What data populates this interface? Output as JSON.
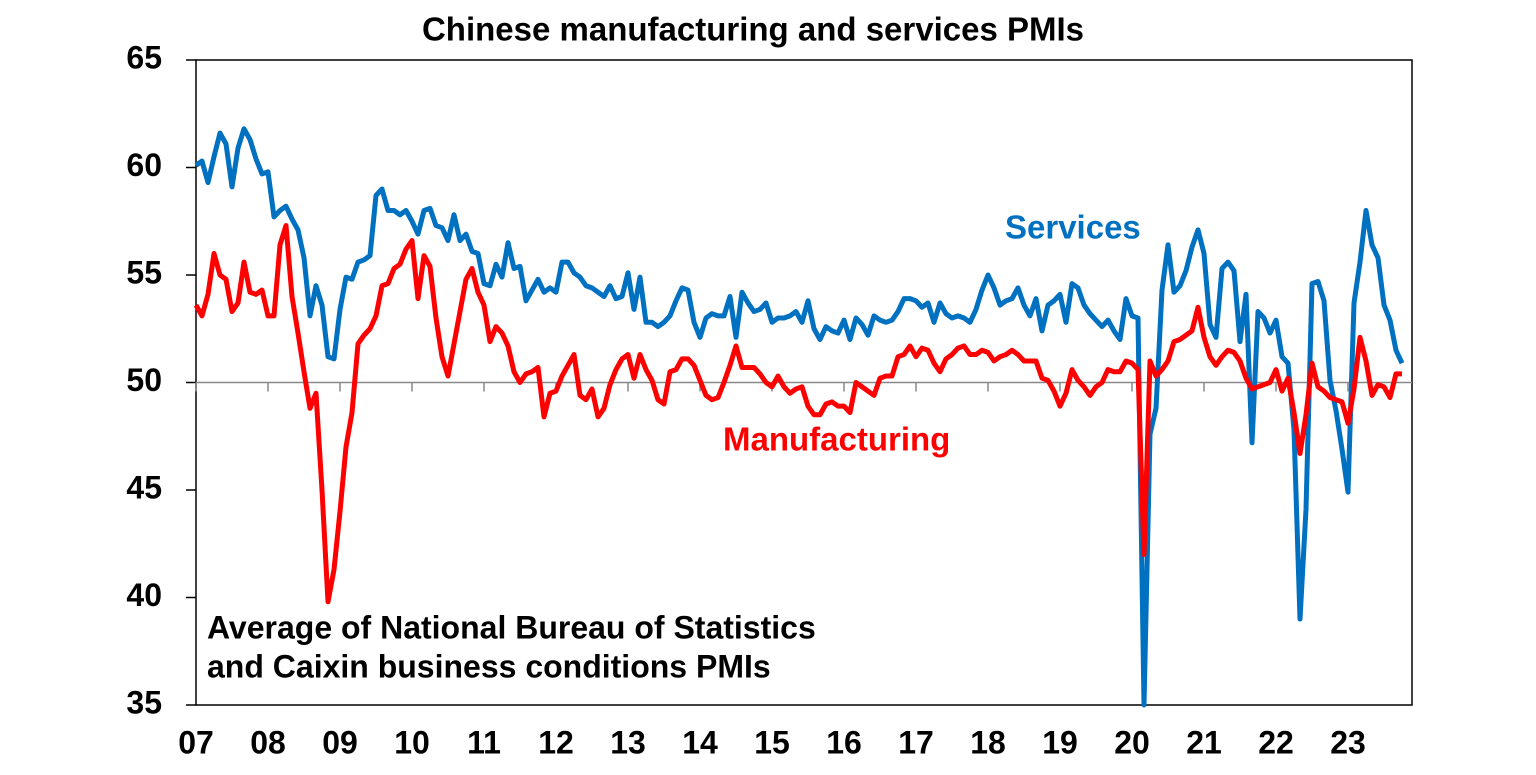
{
  "chart_data": {
    "type": "line",
    "title": "Chinese manufacturing and services PMIs",
    "note": [
      "Average of National Bureau of Statistics",
      "and Caixin business conditions PMIs"
    ],
    "categories": [
      "07",
      null,
      null,
      null,
      null,
      null,
      null,
      null,
      null,
      null,
      null,
      null,
      "08",
      null,
      null,
      null,
      null,
      null,
      null,
      null,
      null,
      null,
      null,
      null,
      "09",
      null,
      null,
      null,
      null,
      null,
      null,
      null,
      null,
      null,
      null,
      null,
      "10",
      null,
      null,
      null,
      null,
      null,
      null,
      null,
      null,
      null,
      null,
      null,
      "11",
      null,
      null,
      null,
      null,
      null,
      null,
      null,
      null,
      null,
      null,
      null,
      "12",
      null,
      null,
      null,
      null,
      null,
      null,
      null,
      null,
      null,
      null,
      null,
      "13",
      null,
      null,
      null,
      null,
      null,
      null,
      null,
      null,
      null,
      null,
      null,
      "14",
      null,
      null,
      null,
      null,
      null,
      null,
      null,
      null,
      null,
      null,
      null,
      "15",
      null,
      null,
      null,
      null,
      null,
      null,
      null,
      null,
      null,
      null,
      null,
      "16",
      null,
      null,
      null,
      null,
      null,
      null,
      null,
      null,
      null,
      null,
      null,
      "17",
      null,
      null,
      null,
      null,
      null,
      null,
      null,
      null,
      null,
      null,
      null,
      "18",
      null,
      null,
      null,
      null,
      null,
      null,
      null,
      null,
      null,
      null,
      null,
      "19",
      null,
      null,
      null,
      null,
      null,
      null,
      null,
      null,
      null,
      null,
      null,
      "20",
      null,
      null,
      null,
      null,
      null,
      null,
      null,
      null,
      null,
      null,
      null,
      "21",
      null,
      null,
      null,
      null,
      null,
      null,
      null,
      null,
      null,
      null,
      null,
      "22",
      null,
      null,
      null,
      null,
      null,
      null,
      null,
      null,
      null,
      null,
      null,
      "23",
      null,
      null,
      null,
      null,
      null,
      null,
      null,
      null,
      null
    ],
    "series": [
      {
        "name": "Services",
        "color": "#0070c0",
        "values": [
          60.1,
          60.3,
          59.3,
          60.5,
          61.6,
          61.1,
          59.1,
          60.9,
          61.8,
          61.3,
          60.4,
          59.7,
          59.8,
          57.7,
          58,
          58.2,
          57.6,
          57.1,
          55.8,
          53.1,
          54.5,
          53.6,
          51.2,
          51.1,
          53.4,
          54.9,
          54.8,
          55.6,
          55.7,
          55.9,
          58.7,
          59,
          58,
          58,
          57.8,
          58,
          57.5,
          56.9,
          58,
          58.1,
          57.3,
          57.2,
          56.6,
          57.8,
          56.6,
          56.9,
          56.1,
          56,
          54.6,
          54.5,
          55.5,
          54.9,
          56.5,
          55.3,
          55.4,
          53.8,
          54.3,
          54.8,
          54.2,
          54.4,
          54.2,
          55.6,
          55.6,
          55.1,
          54.9,
          54.5,
          54.4,
          54.2,
          54,
          54.5,
          53.9,
          54,
          55.1,
          53.4,
          54.9,
          52.8,
          52.8,
          52.6,
          52.8,
          53.1,
          53.8,
          54.4,
          54.3,
          52.8,
          52.1,
          53,
          53.2,
          53.1,
          53.1,
          54,
          52.1,
          54.2,
          53.7,
          53.3,
          53.4,
          53.7,
          52.8,
          53,
          53,
          53.1,
          53.3,
          52.8,
          53.8,
          52.5,
          52,
          52.6,
          52.4,
          52.3,
          52.9,
          52,
          53,
          52.7,
          52.2,
          53.1,
          52.9,
          52.8,
          52.9,
          53.3,
          53.9,
          53.9,
          53.8,
          53.5,
          53.7,
          52.8,
          53.7,
          53.2,
          53,
          53.1,
          53,
          52.8,
          53.4,
          54.3,
          55,
          54.4,
          53.6,
          53.8,
          53.9,
          54.4,
          53.6,
          53.1,
          53.9,
          52.4,
          53.6,
          53.8,
          54.1,
          52.8,
          54.6,
          54.4,
          53.6,
          53.2,
          52.9,
          52.6,
          52.9,
          52.4,
          52,
          53.9,
          53.1,
          53,
          35,
          47.6,
          48.8,
          54.3,
          56.4,
          54.2,
          54.5,
          55.2,
          56.3,
          57.1,
          56,
          52.7,
          52.1,
          55.3,
          55.6,
          55.2,
          51.9,
          54.1,
          47.2,
          53.3,
          53,
          52.3,
          52.9,
          51.2,
          50.9,
          47.8,
          39,
          44.1,
          54.6,
          54.7,
          53.8,
          50.1,
          48.7,
          46.9,
          44.9,
          53.7,
          55.6,
          58,
          56.4,
          55.8,
          53.6,
          52.9,
          51.5,
          50.9
        ]
      },
      {
        "name": "Manufacturing",
        "color": "#ff0000",
        "values": [
          53.6,
          53.1,
          54.1,
          56,
          55,
          54.8,
          53.3,
          53.7,
          55.6,
          54.2,
          54.1,
          54.3,
          53.1,
          53.1,
          56.4,
          57.3,
          54,
          52.3,
          50.5,
          48.8,
          49.5,
          45,
          39.8,
          41.3,
          44,
          47,
          48.6,
          51.8,
          52.2,
          52.5,
          53.1,
          54.5,
          54.6,
          55.3,
          55.5,
          56.2,
          56.6,
          53.9,
          55.9,
          55.4,
          53,
          51.2,
          50.3,
          51.8,
          53.3,
          54.8,
          55.3,
          54.2,
          53.6,
          51.9,
          52.6,
          52.3,
          51.7,
          50.5,
          50,
          50.4,
          50.5,
          50.7,
          48.4,
          49.5,
          49.6,
          50.3,
          50.8,
          51.3,
          49.4,
          49.2,
          49.7,
          48.4,
          48.8,
          49.9,
          50.6,
          51.1,
          51.3,
          50.2,
          51.3,
          50.6,
          50.1,
          49.2,
          49,
          50.5,
          50.6,
          51.1,
          51.1,
          50.8,
          50.1,
          49.4,
          49.2,
          49.3,
          50,
          50.8,
          51.7,
          50.7,
          50.7,
          50.7,
          50.4,
          50,
          49.8,
          50.3,
          49.8,
          49.5,
          49.7,
          49.8,
          48.9,
          48.5,
          48.5,
          49,
          49.1,
          48.9,
          48.9,
          48.6,
          50,
          49.8,
          49.6,
          49.4,
          50.2,
          50.3,
          50.3,
          51.2,
          51.3,
          51.7,
          51.2,
          51.6,
          51.5,
          50.9,
          50.5,
          51.1,
          51.3,
          51.6,
          51.7,
          51.3,
          51.3,
          51.5,
          51.4,
          51,
          51.2,
          51.3,
          51.5,
          51.3,
          51,
          51,
          51,
          50.2,
          50.1,
          49.6,
          48.9,
          49.5,
          50.6,
          50.1,
          49.8,
          49.4,
          49.8,
          50,
          50.6,
          50.5,
          50.5,
          51,
          50.9,
          50.6,
          42,
          51,
          50.3,
          50.6,
          51,
          51.9,
          52,
          52.2,
          52.4,
          53.5,
          52.1,
          51.2,
          50.8,
          51.2,
          51.5,
          51.4,
          51,
          50.2,
          49.7,
          49.8,
          49.9,
          50,
          50.6,
          49.6,
          50.2,
          48.6,
          46.7,
          48.5,
          50.9,
          49.8,
          49.6,
          49.3,
          49.2,
          49.1,
          48.1,
          49.7,
          52.1,
          51,
          49.4,
          49.9,
          49.8,
          49.3,
          50.4,
          50.4
        ]
      }
    ],
    "ylim": [
      35,
      65
    ],
    "yticks": [
      35,
      40,
      45,
      50,
      55,
      60,
      65
    ],
    "reference_line": 50
  }
}
